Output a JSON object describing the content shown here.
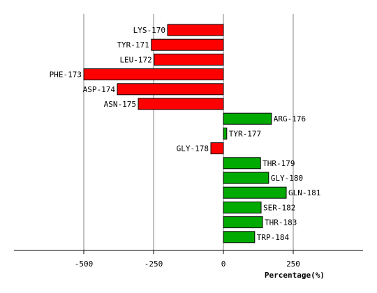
{
  "chart_data": {
    "type": "bar",
    "orientation": "horizontal",
    "xlabel": "Percentage(%)",
    "xlim": [
      -750,
      500
    ],
    "xticks": [
      -500,
      -250,
      0,
      250
    ],
    "xtick_labels": [
      "-500",
      "-250",
      "0",
      "250"
    ],
    "grid": true,
    "legend": "none",
    "colors": {
      "negative": "#ff0000",
      "positive": "#00aa00",
      "outline": "#000000",
      "grid": "#808080"
    },
    "categories": [
      "LYS-170",
      "TYR-171",
      "LEU-172",
      "PHE-173",
      "ASP-174",
      "ASN-175",
      "ARG-176",
      "TYR-177",
      "GLY-178",
      "THR-179",
      "GLY-180",
      "GLN-181",
      "SER-182",
      "THR-183",
      "TRP-184"
    ],
    "values": [
      -200,
      -258,
      -248,
      -500,
      -380,
      -305,
      172,
      12,
      -45,
      133,
      162,
      225,
      135,
      140,
      112
    ]
  }
}
